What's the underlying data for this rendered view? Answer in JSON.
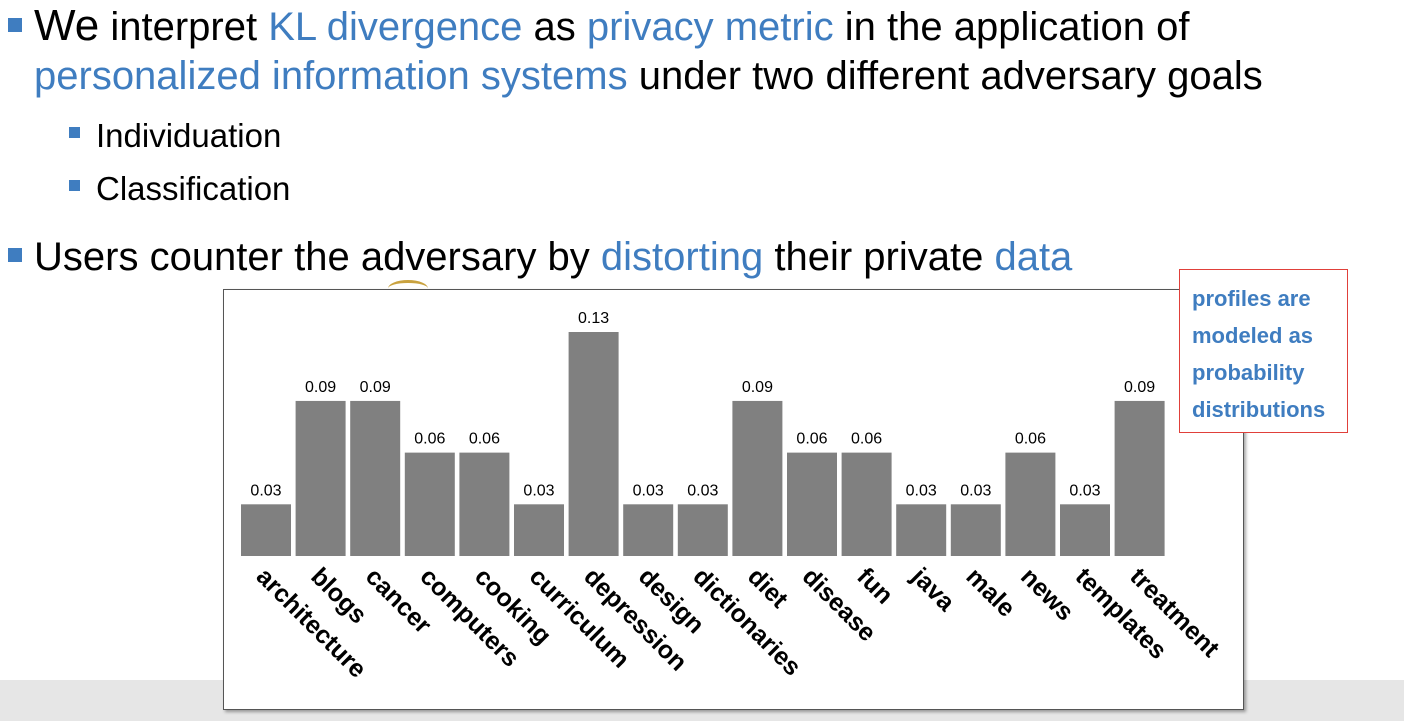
{
  "slide": {
    "bullet1": {
      "p1": "We",
      "p2": " interpret ",
      "p3": "KL divergence",
      "p4": " as ",
      "p5": "privacy metric",
      "p6": " in the application of",
      "p7": "personalized information systems",
      "p8": " under two different adversary goals"
    },
    "sub_bullets": [
      "Individuation",
      "Classification"
    ],
    "bullet2": {
      "p1": "Users counter the adversary by ",
      "p2": "distorting",
      "p3": " their private ",
      "p4": "data"
    },
    "callout": {
      "lines": [
        "profiles are",
        "modeled as",
        "probability",
        "distributions"
      ]
    },
    "colors": {
      "accent_blue": "#3f7dc0",
      "bar_gray": "#808080",
      "callout_border": "#e0403a"
    }
  },
  "chart_data": {
    "type": "bar",
    "categories": [
      "architecture",
      "blogs",
      "cancer",
      "computers",
      "cooking",
      "curriculum",
      "depression",
      "design",
      "dictionaries",
      "diet",
      "disease",
      "fun",
      "java",
      "male",
      "news",
      "templates",
      "treatment"
    ],
    "values": [
      0.03,
      0.09,
      0.09,
      0.06,
      0.06,
      0.03,
      0.13,
      0.03,
      0.03,
      0.09,
      0.06,
      0.06,
      0.03,
      0.03,
      0.06,
      0.03,
      0.09
    ],
    "title": "",
    "xlabel": "",
    "ylabel": "",
    "grid": false,
    "legend": "none",
    "data_labels": true
  }
}
